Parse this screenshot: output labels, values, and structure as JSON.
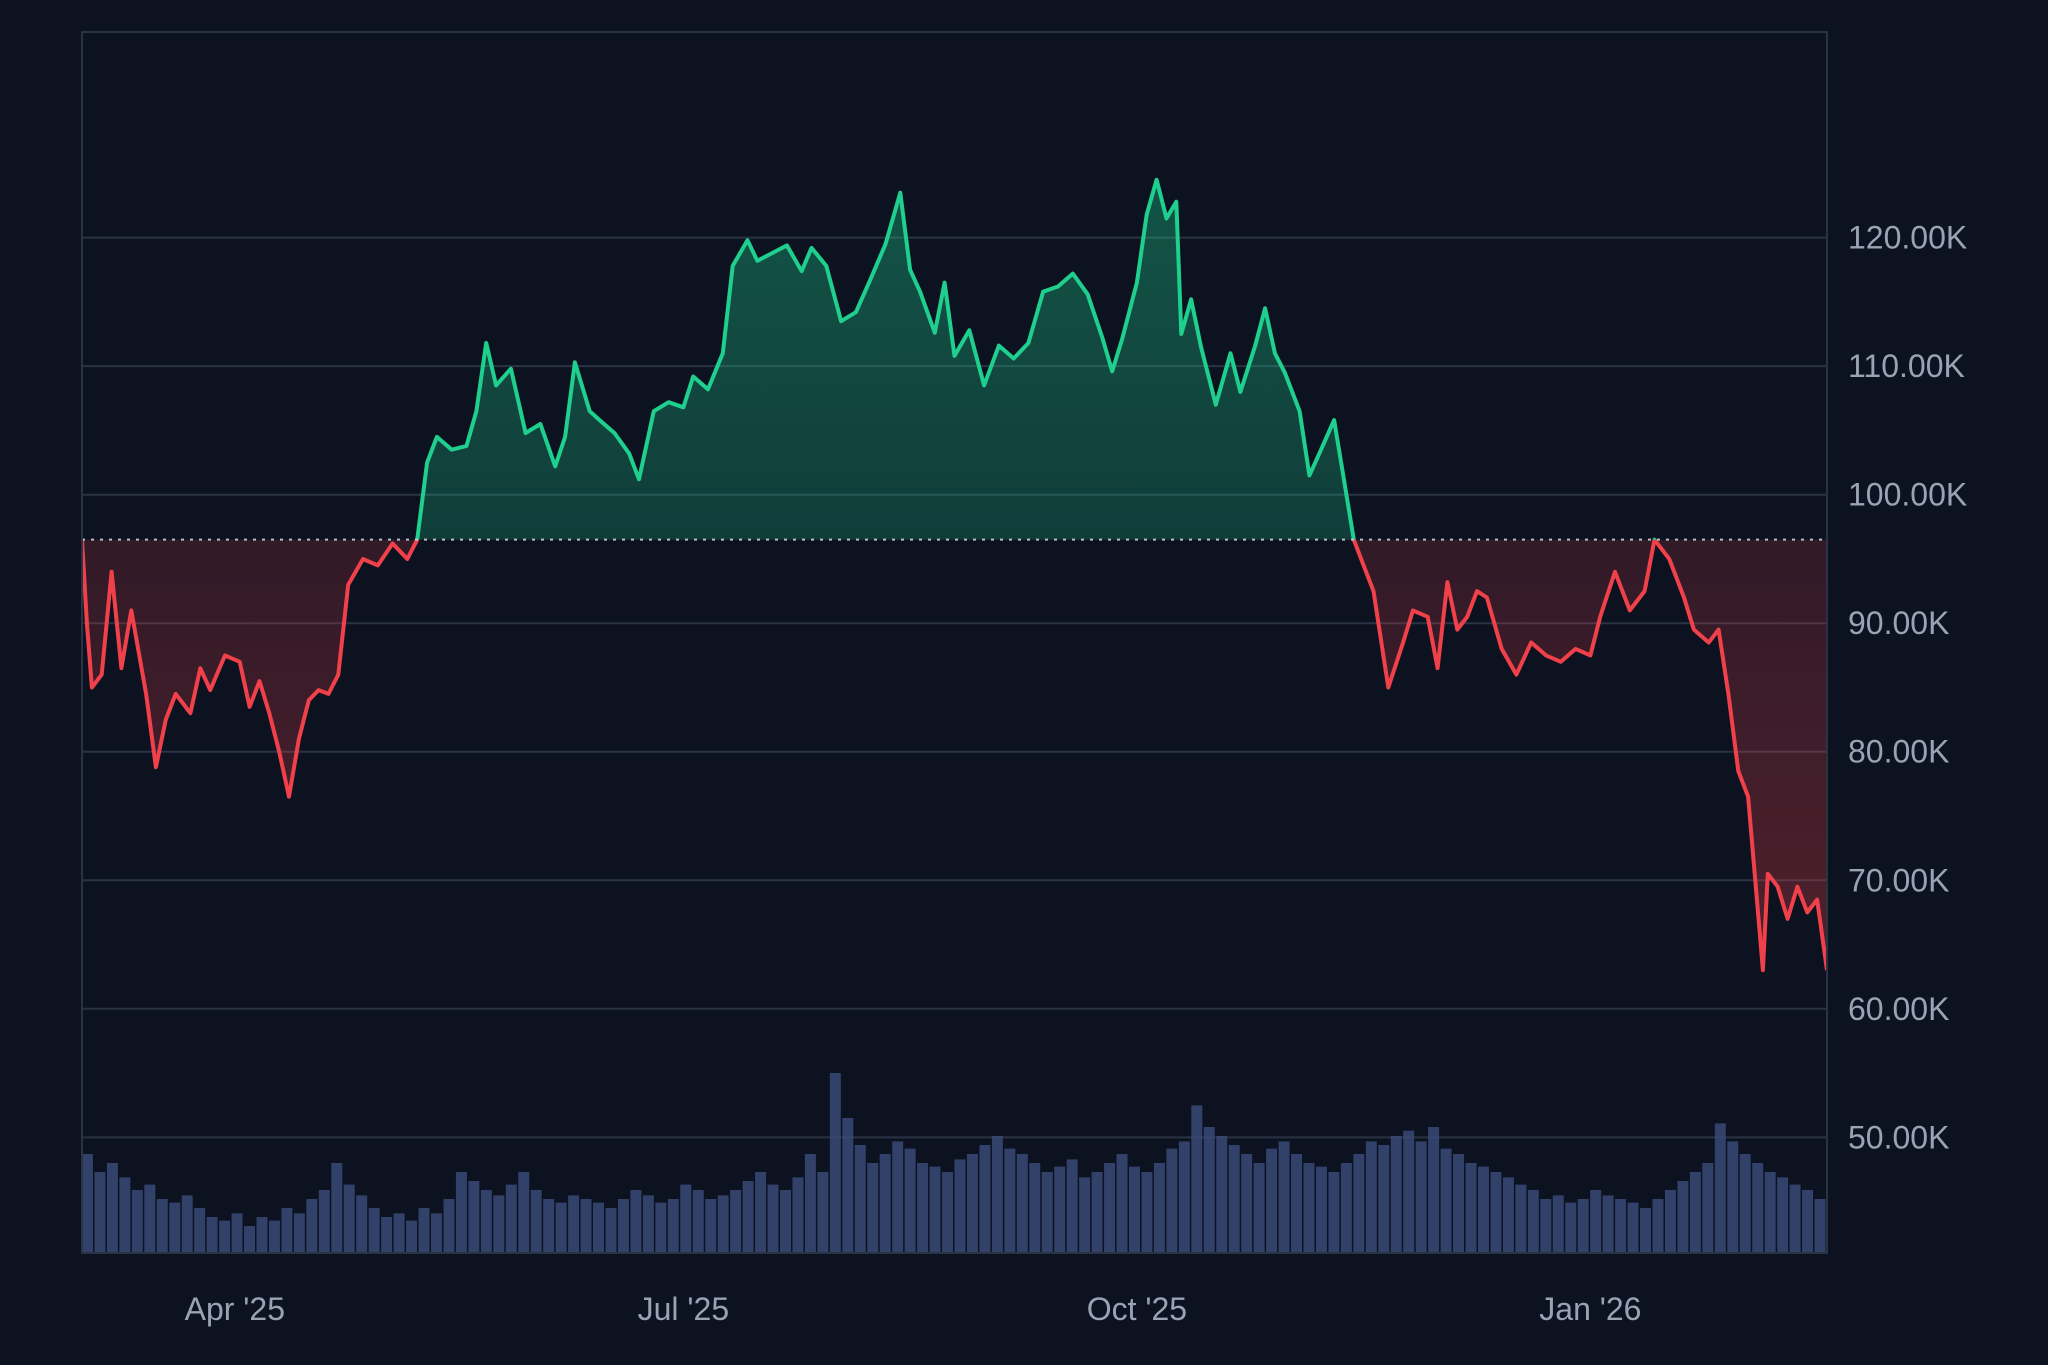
{
  "chart_data": {
    "type": "area",
    "title": "",
    "xlabel": "",
    "ylabel": "",
    "baseline_value": 96500,
    "ylim": [
      41000,
      136000
    ],
    "xlim": [
      "2025-03-01",
      "2026-02-18"
    ],
    "grid": true,
    "legend": "none",
    "colors": {
      "background": "#0c1220",
      "grid": "#2a3344",
      "up_line": "#1fcf8e",
      "down_line": "#f0414a",
      "volume": "#3a4a78",
      "baseline": "#c9ced8",
      "text": "#9aa3b5"
    },
    "y_ticks": [
      {
        "value": 120000,
        "label": "120.00K"
      },
      {
        "value": 110000,
        "label": "110.00K"
      },
      {
        "value": 100000,
        "label": "100.00K"
      },
      {
        "value": 90000,
        "label": "90.00K"
      },
      {
        "value": 80000,
        "label": "80.00K"
      },
      {
        "value": 70000,
        "label": "70.00K"
      },
      {
        "value": 60000,
        "label": "60.00K"
      },
      {
        "value": 50000,
        "label": "50.00K"
      }
    ],
    "x_ticks": [
      {
        "date": "2025-04-01",
        "label": "Apr '25"
      },
      {
        "date": "2025-07-01",
        "label": "Jul '25"
      },
      {
        "date": "2025-10-01",
        "label": "Oct '25"
      },
      {
        "date": "2026-01-01",
        "label": "Jan '26"
      }
    ],
    "series": [
      {
        "type": "price",
        "points": [
          [
            "2025-03-01",
            96500
          ],
          [
            "2025-03-02",
            90000
          ],
          [
            "2025-03-03",
            85000
          ],
          [
            "2025-03-05",
            86000
          ],
          [
            "2025-03-07",
            94000
          ],
          [
            "2025-03-09",
            86500
          ],
          [
            "2025-03-11",
            91000
          ],
          [
            "2025-03-14",
            84500
          ],
          [
            "2025-03-16",
            78800
          ],
          [
            "2025-03-18",
            82500
          ],
          [
            "2025-03-20",
            84500
          ],
          [
            "2025-03-23",
            83000
          ],
          [
            "2025-03-25",
            86500
          ],
          [
            "2025-03-27",
            84800
          ],
          [
            "2025-03-30",
            87500
          ],
          [
            "2025-04-02",
            87000
          ],
          [
            "2025-04-04",
            83500
          ],
          [
            "2025-04-06",
            85500
          ],
          [
            "2025-04-08",
            83000
          ],
          [
            "2025-04-10",
            80000
          ],
          [
            "2025-04-12",
            76500
          ],
          [
            "2025-04-14",
            81000
          ],
          [
            "2025-04-16",
            84000
          ],
          [
            "2025-04-18",
            84800
          ],
          [
            "2025-04-20",
            84500
          ],
          [
            "2025-04-22",
            86000
          ],
          [
            "2025-04-24",
            93000
          ],
          [
            "2025-04-27",
            95000
          ],
          [
            "2025-04-30",
            94500
          ],
          [
            "2025-05-03",
            96200
          ],
          [
            "2025-05-06",
            95000
          ],
          [
            "2025-05-08",
            96500
          ],
          [
            "2025-05-10",
            102500
          ],
          [
            "2025-05-12",
            104500
          ],
          [
            "2025-05-15",
            103500
          ],
          [
            "2025-05-18",
            103800
          ],
          [
            "2025-05-20",
            106500
          ],
          [
            "2025-05-22",
            111800
          ],
          [
            "2025-05-24",
            108500
          ],
          [
            "2025-05-27",
            109800
          ],
          [
            "2025-05-30",
            104800
          ],
          [
            "2025-06-02",
            105500
          ],
          [
            "2025-06-05",
            102200
          ],
          [
            "2025-06-07",
            104500
          ],
          [
            "2025-06-09",
            110300
          ],
          [
            "2025-06-12",
            106500
          ],
          [
            "2025-06-14",
            105800
          ],
          [
            "2025-06-17",
            104800
          ],
          [
            "2025-06-20",
            103200
          ],
          [
            "2025-06-22",
            101200
          ],
          [
            "2025-06-25",
            106500
          ],
          [
            "2025-06-28",
            107200
          ],
          [
            "2025-07-01",
            106800
          ],
          [
            "2025-07-03",
            109200
          ],
          [
            "2025-07-06",
            108200
          ],
          [
            "2025-07-09",
            111000
          ],
          [
            "2025-07-11",
            117800
          ],
          [
            "2025-07-14",
            119800
          ],
          [
            "2025-07-16",
            118200
          ],
          [
            "2025-07-19",
            118800
          ],
          [
            "2025-07-22",
            119400
          ],
          [
            "2025-07-25",
            117400
          ],
          [
            "2025-07-27",
            119200
          ],
          [
            "2025-07-30",
            117800
          ],
          [
            "2025-08-02",
            113500
          ],
          [
            "2025-08-05",
            114200
          ],
          [
            "2025-08-08",
            116800
          ],
          [
            "2025-08-11",
            119500
          ],
          [
            "2025-08-14",
            123500
          ],
          [
            "2025-08-16",
            117500
          ],
          [
            "2025-08-18",
            115800
          ],
          [
            "2025-08-21",
            112600
          ],
          [
            "2025-08-23",
            116500
          ],
          [
            "2025-08-25",
            110800
          ],
          [
            "2025-08-28",
            112800
          ],
          [
            "2025-08-31",
            108500
          ],
          [
            "2025-09-03",
            111600
          ],
          [
            "2025-09-06",
            110600
          ],
          [
            "2025-09-09",
            111800
          ],
          [
            "2025-09-12",
            115800
          ],
          [
            "2025-09-15",
            116200
          ],
          [
            "2025-09-18",
            117200
          ],
          [
            "2025-09-21",
            115600
          ],
          [
            "2025-09-24",
            112200
          ],
          [
            "2025-09-26",
            109600
          ],
          [
            "2025-09-28",
            112100
          ],
          [
            "2025-10-01",
            116500
          ],
          [
            "2025-10-03",
            121800
          ],
          [
            "2025-10-05",
            124500
          ],
          [
            "2025-10-07",
            121500
          ],
          [
            "2025-10-09",
            122800
          ],
          [
            "2025-10-10",
            112500
          ],
          [
            "2025-10-12",
            115200
          ],
          [
            "2025-10-14",
            111500
          ],
          [
            "2025-10-17",
            107000
          ],
          [
            "2025-10-20",
            111000
          ],
          [
            "2025-10-22",
            108000
          ],
          [
            "2025-10-25",
            111600
          ],
          [
            "2025-10-27",
            114500
          ],
          [
            "2025-10-29",
            111000
          ],
          [
            "2025-10-31",
            109500
          ],
          [
            "2025-11-03",
            106500
          ],
          [
            "2025-11-05",
            101500
          ],
          [
            "2025-11-07",
            103200
          ],
          [
            "2025-11-10",
            105800
          ],
          [
            "2025-11-12",
            101200
          ],
          [
            "2025-11-14",
            96500
          ],
          [
            "2025-11-16",
            94500
          ],
          [
            "2025-11-18",
            92500
          ],
          [
            "2025-11-21",
            85000
          ],
          [
            "2025-11-24",
            88500
          ],
          [
            "2025-11-26",
            91000
          ],
          [
            "2025-11-29",
            90500
          ],
          [
            "2025-12-01",
            86500
          ],
          [
            "2025-12-03",
            93200
          ],
          [
            "2025-12-05",
            89500
          ],
          [
            "2025-12-07",
            90500
          ],
          [
            "2025-12-09",
            92500
          ],
          [
            "2025-12-11",
            92000
          ],
          [
            "2025-12-14",
            88000
          ],
          [
            "2025-12-17",
            86000
          ],
          [
            "2025-12-20",
            88500
          ],
          [
            "2025-12-23",
            87500
          ],
          [
            "2025-12-26",
            87000
          ],
          [
            "2025-12-29",
            88000
          ],
          [
            "2026-01-01",
            87500
          ],
          [
            "2026-01-03",
            90500
          ],
          [
            "2026-01-06",
            94000
          ],
          [
            "2026-01-09",
            91000
          ],
          [
            "2026-01-12",
            92500
          ],
          [
            "2026-01-14",
            96500
          ],
          [
            "2026-01-17",
            95000
          ],
          [
            "2026-01-20",
            92000
          ],
          [
            "2026-01-22",
            89500
          ],
          [
            "2026-01-25",
            88500
          ],
          [
            "2026-01-27",
            89500
          ],
          [
            "2026-01-29",
            84500
          ],
          [
            "2026-01-31",
            78500
          ],
          [
            "2026-02-02",
            76500
          ],
          [
            "2026-02-04",
            67500
          ],
          [
            "2026-02-05",
            63000
          ],
          [
            "2026-02-06",
            70500
          ],
          [
            "2026-02-08",
            69500
          ],
          [
            "2026-02-10",
            67000
          ],
          [
            "2026-02-12",
            69500
          ],
          [
            "2026-02-14",
            67500
          ],
          [
            "2026-02-16",
            68500
          ],
          [
            "2026-02-18",
            63000
          ]
        ]
      },
      {
        "type": "volume",
        "relative_levels": [
          0.55,
          0.45,
          0.5,
          0.42,
          0.35,
          0.38,
          0.3,
          0.28,
          0.32,
          0.25,
          0.2,
          0.18,
          0.22,
          0.15,
          0.2,
          0.18,
          0.25,
          0.22,
          0.3,
          0.35,
          0.5,
          0.38,
          0.32,
          0.25,
          0.2,
          0.22,
          0.18,
          0.25,
          0.22,
          0.3,
          0.45,
          0.4,
          0.35,
          0.32,
          0.38,
          0.45,
          0.35,
          0.3,
          0.28,
          0.32,
          0.3,
          0.28,
          0.25,
          0.3,
          0.35,
          0.32,
          0.28,
          0.3,
          0.38,
          0.35,
          0.3,
          0.32,
          0.35,
          0.4,
          0.45,
          0.38,
          0.35,
          0.42,
          0.55,
          0.45,
          1.0,
          0.75,
          0.6,
          0.5,
          0.55,
          0.62,
          0.58,
          0.5,
          0.48,
          0.45,
          0.52,
          0.55,
          0.6,
          0.65,
          0.58,
          0.55,
          0.5,
          0.45,
          0.48,
          0.52,
          0.42,
          0.45,
          0.5,
          0.55,
          0.48,
          0.45,
          0.5,
          0.58,
          0.62,
          0.82,
          0.7,
          0.65,
          0.6,
          0.55,
          0.5,
          0.58,
          0.62,
          0.55,
          0.5,
          0.48,
          0.45,
          0.5,
          0.55,
          0.62,
          0.6,
          0.65,
          0.68,
          0.62,
          0.7,
          0.58,
          0.55,
          0.5,
          0.48,
          0.45,
          0.42,
          0.38,
          0.35,
          0.3,
          0.32,
          0.28,
          0.3,
          0.35,
          0.32,
          0.3,
          0.28,
          0.25,
          0.3,
          0.35,
          0.4,
          0.45,
          0.5,
          0.72,
          0.62,
          0.55,
          0.5,
          0.45,
          0.42,
          0.38,
          0.35,
          0.3
        ]
      }
    ]
  }
}
